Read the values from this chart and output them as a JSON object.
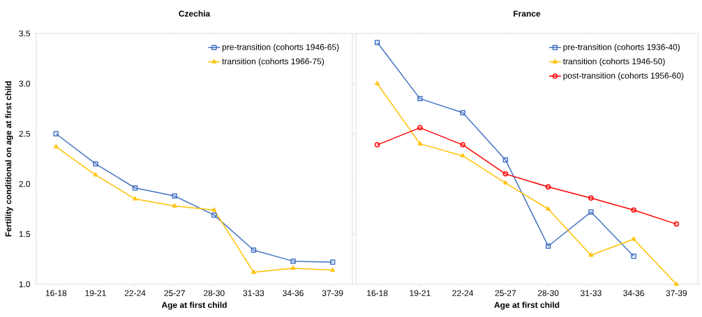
{
  "chart_data": [
    {
      "type": "line",
      "title": "Czechia",
      "xlabel": "Age at first child",
      "ylabel": "Fertility conditional on age at first child",
      "categories": [
        "16-18",
        "19-21",
        "22-24",
        "25-27",
        "28-30",
        "31-33",
        "34-36",
        "37-39"
      ],
      "ylim": [
        1,
        3.5
      ],
      "yticks": [
        {
          "value": 1,
          "label": "1.0"
        },
        {
          "value": 1.5,
          "label": "1.5"
        },
        {
          "value": 2,
          "label": "2.0"
        },
        {
          "value": 2.5,
          "label": "2.5"
        },
        {
          "value": 3,
          "label": "3.0"
        },
        {
          "value": 3.5,
          "label": "3.5"
        }
      ],
      "legend": "top right",
      "series": [
        {
          "name": "pre-transition (cohorts 1946-65)",
          "color": "#4472c4",
          "marker": "square",
          "values": [
            2.5,
            2.2,
            1.96,
            1.88,
            1.69,
            1.34,
            1.23,
            1.22
          ]
        },
        {
          "name": "transition (cohorts 1966-75)",
          "color": "#ffc000",
          "marker": "triangle",
          "values": [
            2.37,
            2.09,
            1.85,
            1.78,
            1.74,
            1.12,
            1.16,
            1.14
          ]
        }
      ]
    },
    {
      "type": "line",
      "title": "France",
      "xlabel": "Age at first child",
      "categories": [
        "16-18",
        "19-21",
        "22-24",
        "25-27",
        "28-30",
        "31-33",
        "34-36",
        "37-39"
      ],
      "ylim": [
        1,
        3.5
      ],
      "yticks": [
        1,
        1.5,
        2,
        2.5,
        3,
        3.5
      ],
      "tick_labels": "x",
      "legend": "top right",
      "series": [
        {
          "name": "pre-transition (cohorts 1936-40)",
          "color": "#4472c4",
          "marker": "square",
          "values": [
            3.41,
            2.85,
            2.71,
            2.24,
            1.38,
            1.72,
            1.28,
            null
          ]
        },
        {
          "name": "transition (cohorts 1946-50)",
          "color": "#ffc000",
          "marker": "triangle",
          "values": [
            3.0,
            2.4,
            2.28,
            2.01,
            1.75,
            1.29,
            1.45,
            1.0
          ]
        },
        {
          "name": "post-transition (cohorts 1956-60)",
          "color": "#ff0000",
          "marker": "circle",
          "values": [
            2.39,
            2.56,
            2.39,
            2.1,
            1.97,
            1.86,
            1.74,
            1.6
          ]
        }
      ]
    }
  ]
}
